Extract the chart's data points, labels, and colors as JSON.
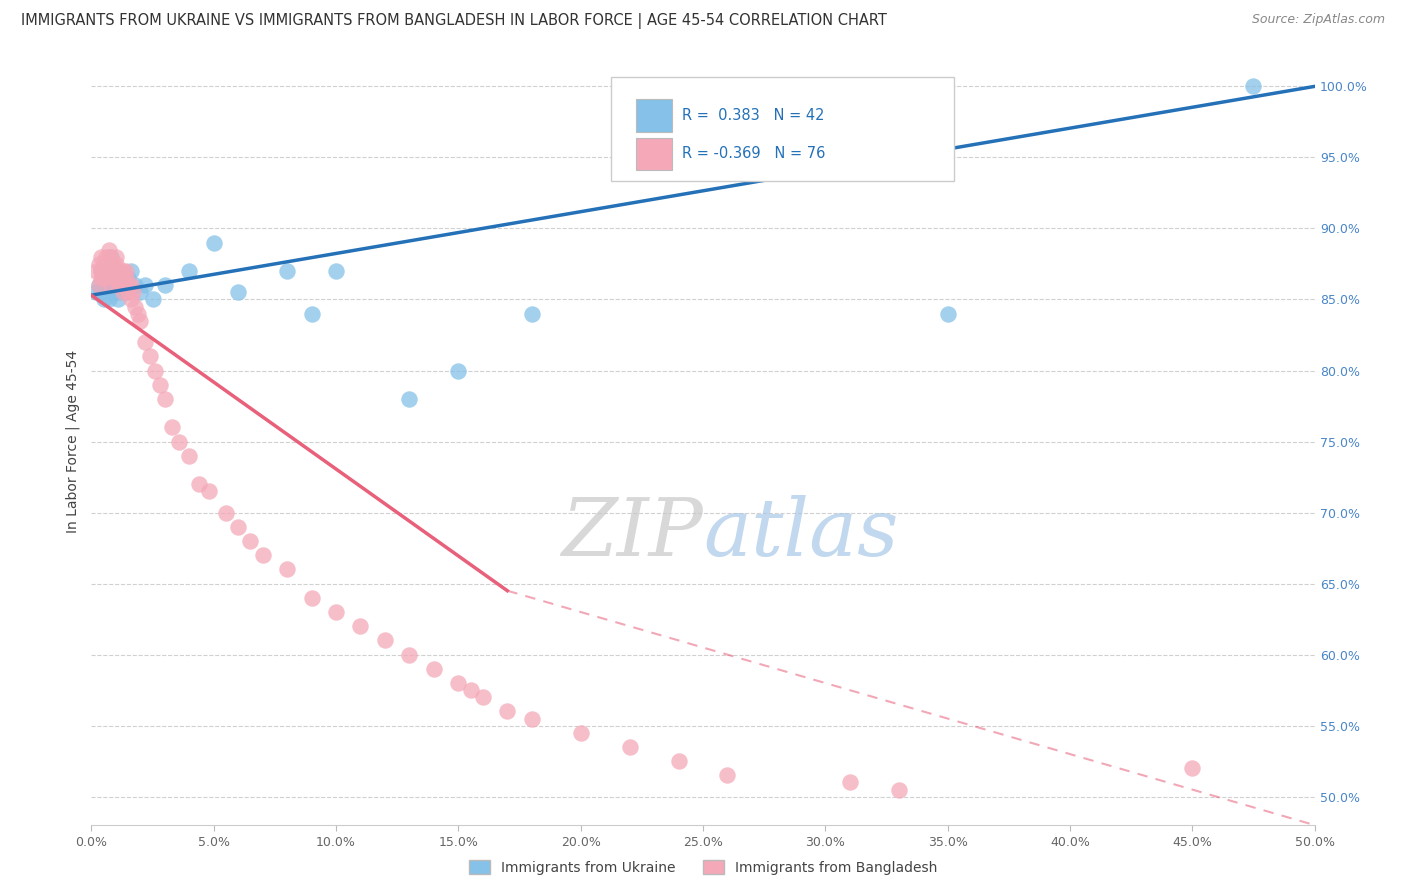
{
  "title": "IMMIGRANTS FROM UKRAINE VS IMMIGRANTS FROM BANGLADESH IN LABOR FORCE | AGE 45-54 CORRELATION CHART",
  "source": "Source: ZipAtlas.com",
  "ylabel": "In Labor Force | Age 45-54",
  "xlim": [
    0.0,
    0.5
  ],
  "ylim": [
    0.48,
    1.02
  ],
  "yticks": [
    0.5,
    0.55,
    0.6,
    0.65,
    0.7,
    0.75,
    0.8,
    0.85,
    0.9,
    0.95,
    1.0
  ],
  "ytick_labels": [
    "50.0%",
    "55.0%",
    "60.0%",
    "65.0%",
    "70.0%",
    "75.0%",
    "80.0%",
    "85.0%",
    "90.0%",
    "95.0%",
    "100.0%"
  ],
  "xticks": [
    0.0,
    0.05,
    0.1,
    0.15,
    0.2,
    0.25,
    0.3,
    0.35,
    0.4,
    0.45,
    0.5
  ],
  "xtick_labels": [
    "0.0%",
    "5.0%",
    "10.0%",
    "15.0%",
    "20.0%",
    "25.0%",
    "30.0%",
    "35.0%",
    "40.0%",
    "45.0%",
    "50.0%"
  ],
  "ukraine_color": "#85c1e8",
  "bangladesh_color": "#f4a8b8",
  "ukraine_line_color": "#2471b8",
  "bangladesh_line_color": "#e8607a",
  "R_ukraine": 0.383,
  "N_ukraine": 42,
  "R_bangladesh": -0.369,
  "N_bangladesh": 76,
  "legend_label_ukraine": "Immigrants from Ukraine",
  "legend_label_bangladesh": "Immigrants from Bangladesh",
  "watermark_zip": "ZIP",
  "watermark_atlas": "atlas",
  "ukraine_line": [
    0.0,
    0.853,
    0.5,
    1.0
  ],
  "bangladesh_line_solid": [
    0.0,
    0.853,
    0.17,
    0.645
  ],
  "bangladesh_line_dash": [
    0.17,
    0.645,
    0.5,
    0.48
  ],
  "ukraine_x": [
    0.002,
    0.003,
    0.004,
    0.004,
    0.005,
    0.005,
    0.006,
    0.006,
    0.006,
    0.007,
    0.007,
    0.007,
    0.008,
    0.008,
    0.009,
    0.009,
    0.01,
    0.01,
    0.01,
    0.011,
    0.011,
    0.012,
    0.013,
    0.014,
    0.015,
    0.016,
    0.018,
    0.02,
    0.022,
    0.025,
    0.03,
    0.04,
    0.05,
    0.06,
    0.08,
    0.09,
    0.1,
    0.13,
    0.15,
    0.18,
    0.35,
    0.475
  ],
  "ukraine_y": [
    0.855,
    0.86,
    0.87,
    0.855,
    0.86,
    0.85,
    0.865,
    0.86,
    0.855,
    0.87,
    0.855,
    0.85,
    0.88,
    0.86,
    0.865,
    0.855,
    0.87,
    0.86,
    0.855,
    0.865,
    0.85,
    0.855,
    0.86,
    0.855,
    0.865,
    0.87,
    0.86,
    0.855,
    0.86,
    0.85,
    0.86,
    0.87,
    0.89,
    0.855,
    0.87,
    0.84,
    0.87,
    0.78,
    0.8,
    0.84,
    0.84,
    1.0
  ],
  "bangladesh_x": [
    0.002,
    0.003,
    0.003,
    0.004,
    0.004,
    0.004,
    0.005,
    0.005,
    0.005,
    0.006,
    0.006,
    0.006,
    0.007,
    0.007,
    0.007,
    0.007,
    0.008,
    0.008,
    0.008,
    0.009,
    0.009,
    0.009,
    0.01,
    0.01,
    0.01,
    0.01,
    0.011,
    0.011,
    0.012,
    0.012,
    0.012,
    0.013,
    0.013,
    0.014,
    0.014,
    0.015,
    0.015,
    0.016,
    0.016,
    0.017,
    0.018,
    0.019,
    0.02,
    0.022,
    0.024,
    0.026,
    0.028,
    0.03,
    0.033,
    0.036,
    0.04,
    0.044,
    0.048,
    0.055,
    0.06,
    0.065,
    0.07,
    0.08,
    0.09,
    0.1,
    0.11,
    0.12,
    0.13,
    0.14,
    0.15,
    0.155,
    0.16,
    0.17,
    0.18,
    0.2,
    0.22,
    0.24,
    0.26,
    0.31,
    0.33,
    0.45
  ],
  "bangladesh_y": [
    0.87,
    0.86,
    0.875,
    0.865,
    0.87,
    0.88,
    0.875,
    0.87,
    0.865,
    0.88,
    0.87,
    0.875,
    0.885,
    0.87,
    0.88,
    0.875,
    0.87,
    0.875,
    0.86,
    0.875,
    0.865,
    0.87,
    0.88,
    0.865,
    0.875,
    0.87,
    0.87,
    0.86,
    0.87,
    0.865,
    0.86,
    0.87,
    0.855,
    0.865,
    0.87,
    0.86,
    0.855,
    0.86,
    0.85,
    0.855,
    0.845,
    0.84,
    0.835,
    0.82,
    0.81,
    0.8,
    0.79,
    0.78,
    0.76,
    0.75,
    0.74,
    0.72,
    0.715,
    0.7,
    0.69,
    0.68,
    0.67,
    0.66,
    0.64,
    0.63,
    0.62,
    0.61,
    0.6,
    0.59,
    0.58,
    0.575,
    0.57,
    0.56,
    0.555,
    0.545,
    0.535,
    0.525,
    0.515,
    0.51,
    0.505,
    0.52
  ]
}
